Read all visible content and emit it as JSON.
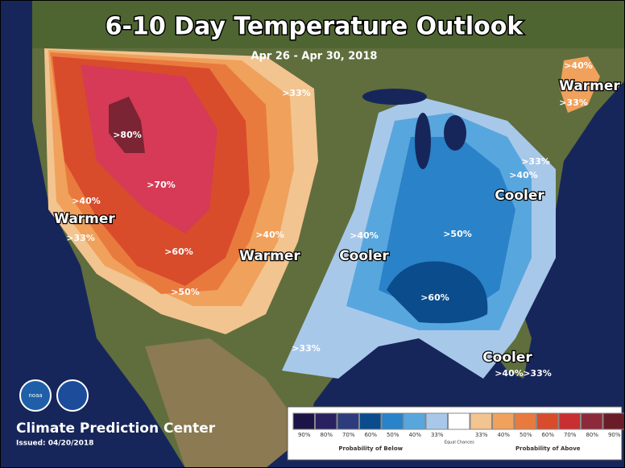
{
  "title": "6-10 Day Temperature Outlook",
  "subtitle": "Apr 26 - Apr 30, 2018",
  "map_labels": [
    ">40%",
    "Warmer",
    ">33%",
    ">33%",
    ">80%",
    ">70%",
    ">40%",
    "Warmer",
    ">33%",
    ">60%",
    ">50%",
    ">40%",
    "Warmer",
    ">33%",
    ">40%",
    "Cooler",
    ">40%",
    ">50%",
    "Cooler",
    ">60%",
    ">33%",
    "Cooler",
    ">40%",
    ">33%"
  ],
  "logo": "noaa",
  "footer": {
    "agency": "Climate Prediction Center",
    "issued": "Issued: 04/20/2018"
  },
  "legend": {
    "below": [
      {
        "label": "90%",
        "color": "#1c1446"
      },
      {
        "label": "80%",
        "color": "#2a2160"
      },
      {
        "label": "70%",
        "color": "#2d3c7c"
      },
      {
        "label": "60%",
        "color": "#0b4c8c"
      },
      {
        "label": "50%",
        "color": "#2a82c8"
      },
      {
        "label": "40%",
        "color": "#58a6de"
      },
      {
        "label": "33%",
        "color": "#a8c8ea"
      }
    ],
    "equal": {
      "label": "Equal Chances",
      "color": "#ffffff"
    },
    "above": [
      {
        "label": "33%",
        "color": "#f2c490"
      },
      {
        "label": "40%",
        "color": "#f0a15c"
      },
      {
        "label": "50%",
        "color": "#e97a3e"
      },
      {
        "label": "60%",
        "color": "#d84c2c"
      },
      {
        "label": "70%",
        "color": "#c92f30"
      },
      {
        "label": "80%",
        "color": "#8c2a3c"
      },
      {
        "label": "90%",
        "color": "#6a1d28"
      }
    ],
    "below_caption": "Probability of Below",
    "above_caption": "Probability of Above"
  }
}
